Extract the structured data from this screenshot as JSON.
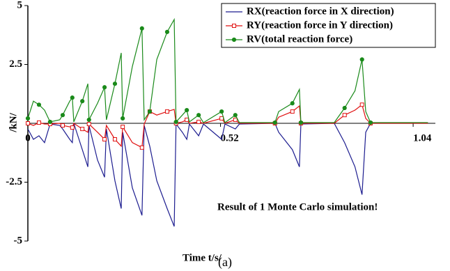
{
  "chart_data": {
    "type": "line",
    "x_label": "Time t/s/",
    "y_label": "/kN/",
    "annotation": "Result of 1 Monte Carlo simulation!",
    "caption": "(a)",
    "xlim": [
      0,
      1.1
    ],
    "ylim": [
      -5,
      5
    ],
    "xticks": [
      0,
      0.52,
      1.04
    ],
    "yticks": [
      -5,
      -2.5,
      2.5,
      5
    ],
    "legend": "upper right",
    "x": [
      0,
      0.015,
      0.03,
      0.045,
      0.06,
      0.086,
      0.094,
      0.113,
      0.12,
      0.124,
      0.147,
      0.162,
      0.165,
      0.188,
      0.207,
      0.212,
      0.235,
      0.252,
      0.256,
      0.282,
      0.308,
      0.314,
      0.329,
      0.348,
      0.376,
      0.395,
      0.4,
      0.417,
      0.429,
      0.436,
      0.461,
      0.474,
      0.523,
      0.532,
      0.56,
      0.571,
      0.667,
      0.677,
      0.714,
      0.733,
      0.737,
      0.827,
      0.855,
      0.883,
      0.902,
      0.912,
      0.925,
      1.08
    ],
    "series": [
      {
        "name": "RX(reaction force in X direction)",
        "color": "#1c1c8f",
        "marker": "none",
        "values": [
          -0.24,
          -0.68,
          -0.53,
          -0.82,
          -0.03,
          -0.09,
          -0.24,
          -0.68,
          -0.82,
          0,
          -1.12,
          -1.85,
          -0.09,
          -1.56,
          -2.29,
          -0.24,
          -2.44,
          -3.62,
          -0.38,
          -2.74,
          -3.91,
          -0.09,
          -0.97,
          -2.44,
          -3.62,
          -4.38,
          -0.03,
          -0.38,
          -0.68,
          -0.03,
          -0.53,
          -0.03,
          -0.68,
          -0.03,
          -0.24,
          -0.03,
          0,
          -0.38,
          -1.12,
          -1.85,
          -0.03,
          0,
          -0.82,
          -1.85,
          -3.03,
          -0.38,
          0,
          0
        ]
      },
      {
        "name": "RY(reaction force in Y direction)",
        "color": "#e01010",
        "marker": "square",
        "values": [
          0,
          -0.09,
          0.03,
          -0.03,
          -0.03,
          0,
          -0.09,
          -0.15,
          -0.18,
          0,
          -0.24,
          -0.38,
          -0.03,
          -0.38,
          -0.68,
          -0.09,
          -0.68,
          -0.97,
          -0.15,
          -0.82,
          -1.03,
          -0.03,
          0.5,
          0.35,
          0.5,
          0.59,
          0,
          0.06,
          0.15,
          0,
          0.06,
          0,
          0.21,
          0,
          0.15,
          0,
          0,
          0.26,
          0.5,
          0.74,
          0,
          0,
          0.35,
          0.56,
          0.79,
          0.21,
          0,
          0
        ]
      },
      {
        "name": "RV(total reaction force)",
        "color": "#1a8a1a",
        "marker": "circle",
        "values": [
          0.21,
          0.94,
          0.79,
          0.56,
          0.06,
          0.15,
          0.35,
          0.94,
          1.09,
          0.06,
          0.94,
          1.68,
          0.15,
          0.85,
          1.53,
          0.15,
          1.68,
          2.99,
          0.21,
          2.41,
          4.03,
          0.15,
          0.5,
          2.71,
          3.88,
          4.41,
          0.06,
          0.35,
          0.56,
          0.06,
          0.35,
          0.03,
          0.5,
          0.03,
          0.35,
          0.03,
          0.03,
          0.5,
          0.85,
          1.44,
          0.03,
          0.03,
          0.65,
          1.38,
          2.71,
          0.5,
          0.03,
          0.03
        ]
      }
    ]
  }
}
